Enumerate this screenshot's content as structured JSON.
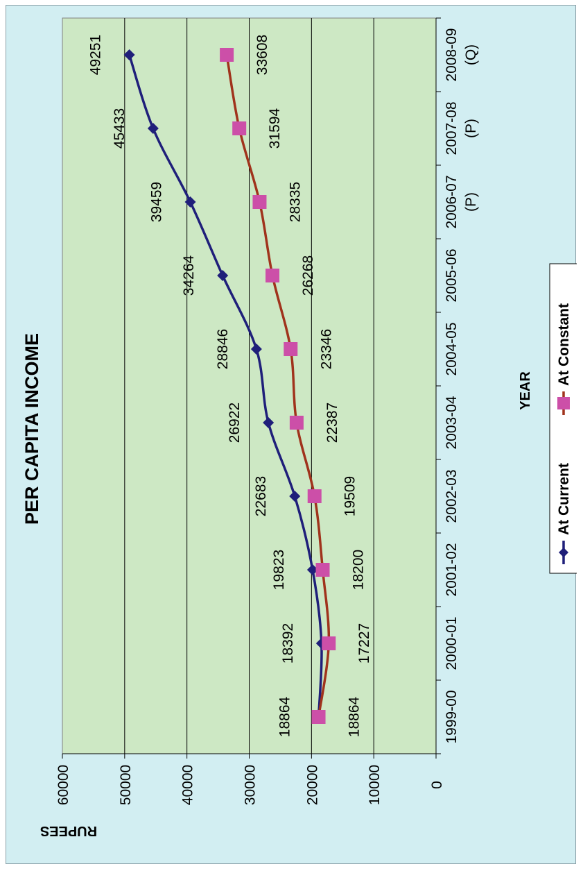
{
  "chart_data": {
    "type": "line",
    "title": "PER CAPITA INCOME",
    "xlabel": "YEAR",
    "ylabel": "RUPEES",
    "categories": [
      [
        "1999-00"
      ],
      [
        "2000-01"
      ],
      [
        "2001-02"
      ],
      [
        "2002-03"
      ],
      [
        "2003-04"
      ],
      [
        "2004-05"
      ],
      [
        "2005-06"
      ],
      [
        "2006-07",
        "(P)"
      ],
      [
        "2007-08",
        "(P)"
      ],
      [
        "2008-09",
        "(Q)"
      ]
    ],
    "ylim": [
      0,
      60000
    ],
    "yticks": [
      "0",
      "10000",
      "20000",
      "30000",
      "40000",
      "50000",
      "60000"
    ],
    "grid": true,
    "legend_position": "bottom",
    "series": [
      {
        "name": "At Current",
        "color": "#1f1f7a",
        "marker": "diamond",
        "values": [
          18864,
          18392,
          19823,
          22683,
          26922,
          28846,
          34264,
          39459,
          45433,
          49251
        ],
        "labels": [
          "18864",
          "18392",
          "19823",
          "22683",
          "26922",
          "28846",
          "34264",
          "39459",
          "45433",
          "49251"
        ]
      },
      {
        "name": "At Constant",
        "color": "#a0331c",
        "marker_color": "#cc4fa8",
        "marker": "square",
        "values": [
          18864,
          17227,
          18200,
          19509,
          22387,
          23346,
          26268,
          28335,
          31594,
          33608
        ],
        "labels": [
          "18864",
          "17227",
          "18200",
          "19509",
          "22387",
          "23346",
          "26268",
          "28335",
          "31594",
          "33608"
        ]
      }
    ],
    "plot_background": "#cde8c4"
  }
}
